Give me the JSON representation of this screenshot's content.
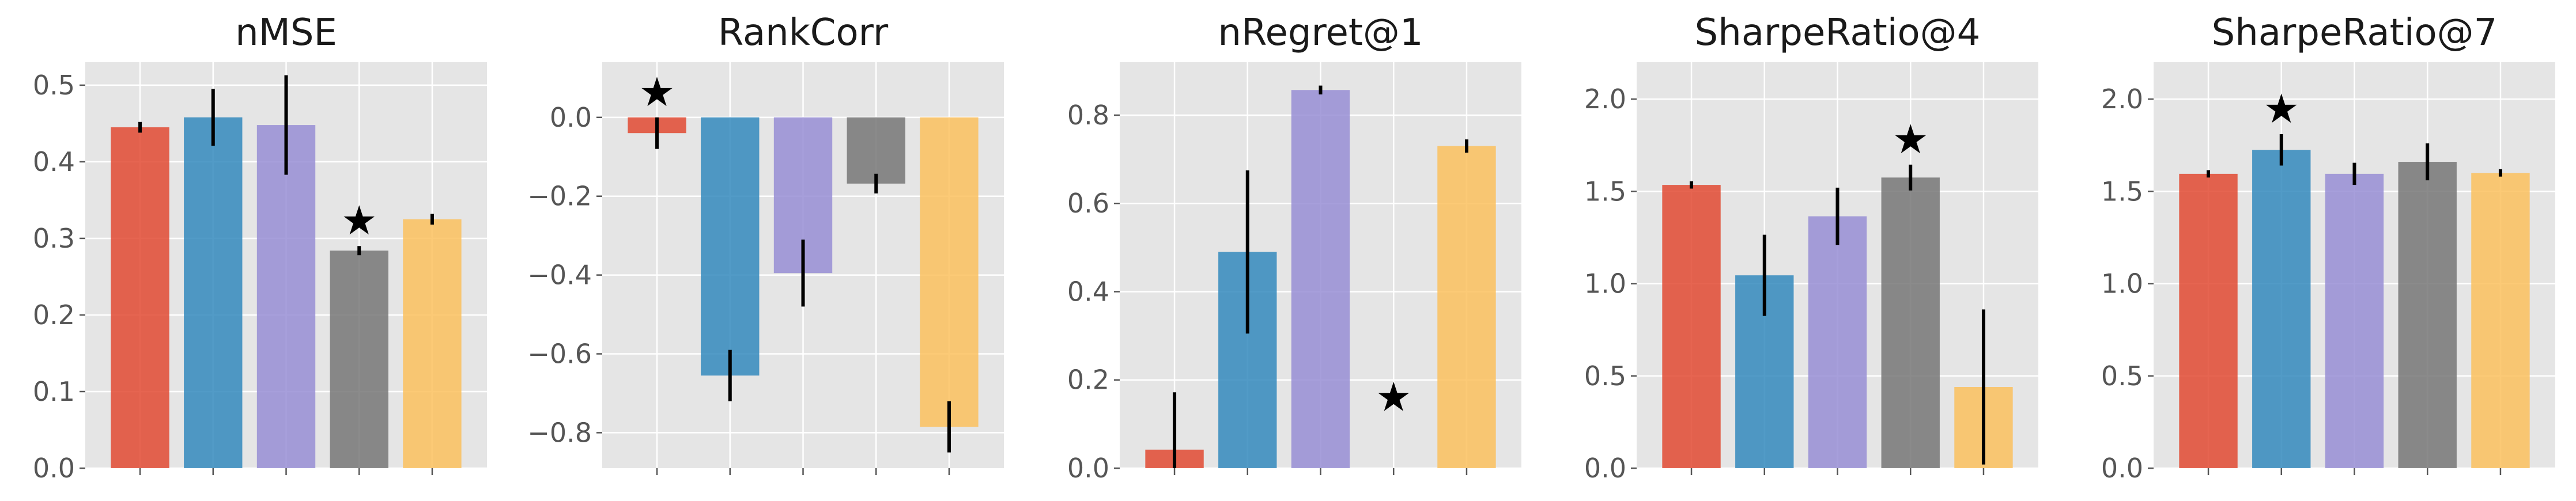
{
  "chart_data": [
    {
      "type": "bar",
      "title": "nMSE",
      "categories": [
        "",
        "",
        "",
        "",
        ""
      ],
      "values": [
        0.445,
        0.458,
        0.448,
        0.284,
        0.325
      ],
      "errors": [
        0.007,
        0.037,
        0.065,
        0.006,
        0.007
      ],
      "ylim": [
        0,
        0.53
      ],
      "yticks": [
        0.0,
        0.1,
        0.2,
        0.3,
        0.4,
        0.5
      ],
      "ytick_labels": [
        "0.0",
        "0.1",
        "0.2",
        "0.3",
        "0.4",
        "0.5"
      ],
      "best_index": 3
    },
    {
      "type": "bar",
      "title": "RankCorr",
      "categories": [
        "",
        "",
        "",
        "",
        ""
      ],
      "values": [
        -0.04,
        -0.655,
        -0.395,
        -0.168,
        -0.785
      ],
      "errors": [
        0.04,
        0.065,
        0.085,
        0.025,
        0.065
      ],
      "ylim": [
        -0.89,
        0.14
      ],
      "yticks": [
        0.0,
        -0.2,
        -0.4,
        -0.6,
        -0.8
      ],
      "ytick_labels": [
        "0.0",
        "−0.2",
        "−0.4",
        "−0.6",
        "−0.8"
      ],
      "best_index": 0
    },
    {
      "type": "bar",
      "title": "nRegret@1",
      "categories": [
        "",
        "",
        "",
        "",
        ""
      ],
      "values": [
        0.042,
        0.49,
        0.857,
        0.0,
        0.73
      ],
      "errors": [
        0.13,
        0.185,
        0.01,
        0.0,
        0.015
      ],
      "ylim": [
        0,
        0.92
      ],
      "yticks": [
        0.0,
        0.2,
        0.4,
        0.6,
        0.8
      ],
      "ytick_labels": [
        "0.0",
        "0.2",
        "0.4",
        "0.6",
        "0.8"
      ],
      "best_index": 3
    },
    {
      "type": "bar",
      "title": "SharpeRatio@4",
      "categories": [
        "",
        "",
        "",
        "",
        ""
      ],
      "values": [
        1.535,
        1.045,
        1.365,
        1.575,
        0.44
      ],
      "errors": [
        0.02,
        0.22,
        0.155,
        0.07,
        0.42
      ],
      "ylim": [
        0,
        2.2
      ],
      "yticks": [
        0.0,
        0.5,
        1.0,
        1.5,
        2.0
      ],
      "ytick_labels": [
        "0.0",
        "0.5",
        "1.0",
        "1.5",
        "2.0"
      ],
      "best_index": 3
    },
    {
      "type": "bar",
      "title": "SharpeRatio@7",
      "categories": [
        "",
        "",
        "",
        "",
        ""
      ],
      "values": [
        1.595,
        1.725,
        1.595,
        1.66,
        1.6
      ],
      "errors": [
        0.02,
        0.085,
        0.06,
        0.1,
        0.02
      ],
      "ylim": [
        0,
        2.2
      ],
      "yticks": [
        0.0,
        0.5,
        1.0,
        1.5,
        2.0
      ],
      "ytick_labels": [
        "0.0",
        "0.5",
        "1.0",
        "1.5",
        "2.0"
      ],
      "best_index": 1
    }
  ],
  "colors": [
    "#e24a33",
    "#348abd",
    "#988ed5",
    "#777777",
    "#fbc15e"
  ],
  "marker": "★"
}
